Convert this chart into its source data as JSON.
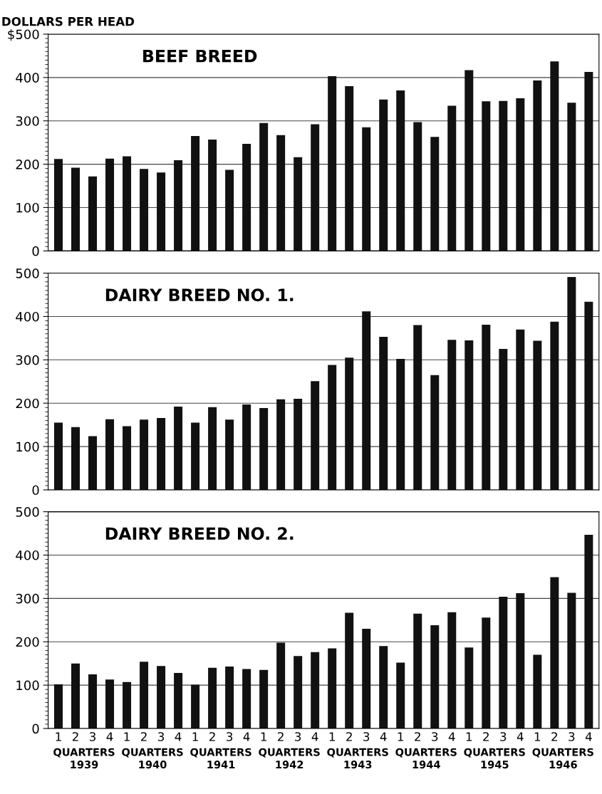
{
  "chart_data": [
    {
      "type": "bar",
      "title": "BEEF BREED",
      "ylabel": "DOLLARS PER HEAD",
      "categories": [
        "1",
        "2",
        "3",
        "4",
        "1",
        "2",
        "3",
        "4",
        "1",
        "2",
        "3",
        "4",
        "1",
        "2",
        "3",
        "4",
        "1",
        "2",
        "3",
        "4",
        "1",
        "2",
        "3",
        "4",
        "1",
        "2",
        "3",
        "4",
        "1",
        "2",
        "3",
        "4"
      ],
      "values": [
        212,
        192,
        172,
        213,
        218,
        189,
        181,
        209,
        265,
        257,
        187,
        247,
        295,
        267,
        216,
        292,
        403,
        380,
        285,
        349,
        370,
        297,
        263,
        335,
        417,
        345,
        346,
        352,
        393,
        437,
        342,
        413
      ],
      "color": "#111111",
      "ylim": [
        0,
        500
      ],
      "yticks": [
        0,
        100,
        200,
        300,
        400,
        {
          "value": 500,
          "label": "$500"
        }
      ],
      "grid": "y",
      "tick_labels": "y"
    },
    {
      "type": "bar",
      "title": "DAIRY BREED NO. 1.",
      "categories": [
        "1",
        "2",
        "3",
        "4",
        "1",
        "2",
        "3",
        "4",
        "1",
        "2",
        "3",
        "4",
        "1",
        "2",
        "3",
        "4",
        "1",
        "2",
        "3",
        "4",
        "1",
        "2",
        "3",
        "4",
        "1",
        "2",
        "3",
        "4",
        "1",
        "2",
        "3",
        "4"
      ],
      "values": [
        155,
        145,
        124,
        163,
        147,
        162,
        166,
        192,
        155,
        191,
        162,
        197,
        189,
        209,
        210,
        251,
        288,
        305,
        412,
        353,
        302,
        380,
        265,
        346,
        345,
        381,
        325,
        370,
        344,
        388,
        491,
        434
      ],
      "color": "#111111",
      "ylim": [
        0,
        500
      ],
      "yticks": [
        0,
        100,
        200,
        300,
        400,
        500
      ],
      "grid": "y",
      "tick_labels": "y"
    },
    {
      "type": "bar",
      "title": "DAIRY BREED NO. 2.",
      "categories": [
        "1",
        "2",
        "3",
        "4",
        "1",
        "2",
        "3",
        "4",
        "1",
        "2",
        "3",
        "4",
        "1",
        "2",
        "3",
        "4",
        "1",
        "2",
        "3",
        "4",
        "1",
        "2",
        "3",
        "4",
        "1",
        "2",
        "3",
        "4",
        "1",
        "2",
        "3",
        "4"
      ],
      "values": [
        102,
        150,
        125,
        113,
        107,
        154,
        144,
        128,
        101,
        140,
        143,
        137,
        135,
        198,
        167,
        176,
        185,
        267,
        230,
        190,
        152,
        265,
        238,
        268,
        187,
        256,
        304,
        312,
        170,
        349,
        313,
        447
      ],
      "color": "#111111",
      "ylim": [
        0,
        500
      ],
      "yticks": [
        0,
        100,
        200,
        300,
        400,
        500
      ],
      "grid": "y",
      "annotations": [
        "QUARTERS\n1939",
        "QUARTERS\n1940",
        "QUARTERS\n1941",
        "QUARTERS\n1942",
        "QUARTERS\n1943",
        "QUARTERS\n1944",
        "QUARTERS\n1945",
        "QUARTERS\n1946"
      ]
    }
  ]
}
